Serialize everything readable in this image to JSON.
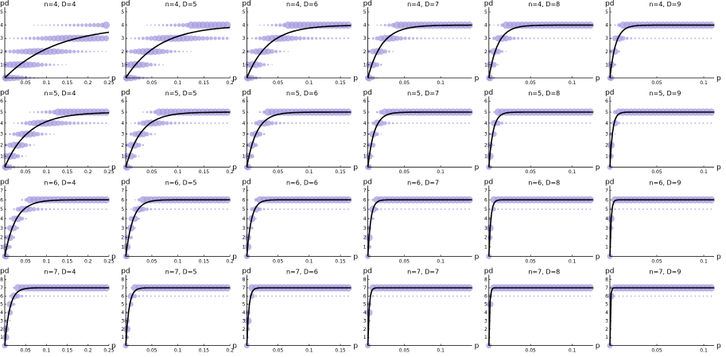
{
  "colors": {
    "bubble": "#a89ce0",
    "curve": "#000000",
    "axis": "#000000"
  },
  "chart_data": {
    "type": "scatter",
    "description_of_marks": "bubble grid: one bubble per (p, pd) integer level, size = frequency; black line = mean pd",
    "rows_n": [
      4,
      5,
      6,
      7
    ],
    "cols_D": [
      4,
      5,
      6,
      7,
      8,
      9
    ],
    "xlabel": "p",
    "ylabel": "pd",
    "xlim_by_D": {
      "4": [
        0,
        0.25
      ],
      "5": [
        0,
        0.2
      ],
      "6": [
        0,
        0.167
      ],
      "7": [
        0,
        0.143
      ],
      "8": [
        0,
        0.125
      ],
      "9": [
        0,
        0.111
      ]
    },
    "xticks_by_D": {
      "4": [
        "0.05",
        "0.1",
        "0.15",
        "0.2",
        "0.25"
      ],
      "5": [
        "0.05",
        "0.1",
        "0.15",
        "0.2"
      ],
      "6": [
        "0.05",
        "0.1",
        "0.15"
      ],
      "7": [
        "0.05",
        "0.1"
      ],
      "8": [
        "0.05",
        "0.1"
      ],
      "9": [
        "0.05",
        "0.1"
      ]
    },
    "ylim_by_n": {
      "4": [
        0,
        5
      ],
      "5": [
        0,
        6
      ],
      "6": [
        0,
        7
      ],
      "7": [
        0,
        8
      ]
    },
    "panels": [
      {
        "title": "n=4, D=4",
        "n": 4,
        "D": 4
      },
      {
        "title": "n=4, D=5",
        "n": 4,
        "D": 5
      },
      {
        "title": "n=4, D=6",
        "n": 4,
        "D": 6
      },
      {
        "title": "n=4, D=7",
        "n": 4,
        "D": 7
      },
      {
        "title": "n=4, D=8",
        "n": 4,
        "D": 8
      },
      {
        "title": "n=4, D=9",
        "n": 4,
        "D": 9
      },
      {
        "title": "n=5, D=4",
        "n": 5,
        "D": 4
      },
      {
        "title": "n=5, D=5",
        "n": 5,
        "D": 5
      },
      {
        "title": "n=5, D=6",
        "n": 5,
        "D": 6
      },
      {
        "title": "n=5, D=7",
        "n": 5,
        "D": 7
      },
      {
        "title": "n=5, D=8",
        "n": 5,
        "D": 8
      },
      {
        "title": "n=5, D=9",
        "n": 5,
        "D": 9
      },
      {
        "title": "n=6, D=4",
        "n": 6,
        "D": 4
      },
      {
        "title": "n=6, D=5",
        "n": 6,
        "D": 5
      },
      {
        "title": "n=6, D=6",
        "n": 6,
        "D": 6
      },
      {
        "title": "n=6, D=7",
        "n": 6,
        "D": 7
      },
      {
        "title": "n=6, D=8",
        "n": 6,
        "D": 8
      },
      {
        "title": "n=6, D=9",
        "n": 6,
        "D": 9
      },
      {
        "title": "n=7, D=4",
        "n": 7,
        "D": 4
      },
      {
        "title": "n=7, D=5",
        "n": 7,
        "D": 5
      },
      {
        "title": "n=7, D=6",
        "n": 7,
        "D": 6
      },
      {
        "title": "n=7, D=7",
        "n": 7,
        "D": 7
      },
      {
        "title": "n=7, D=8",
        "n": 7,
        "D": 8
      },
      {
        "title": "n=7, D=9",
        "n": 7,
        "D": 9
      }
    ],
    "curve_model": "pd(p) ≈ n * (1 - exp(-k*p)), k depends on n and D"
  }
}
